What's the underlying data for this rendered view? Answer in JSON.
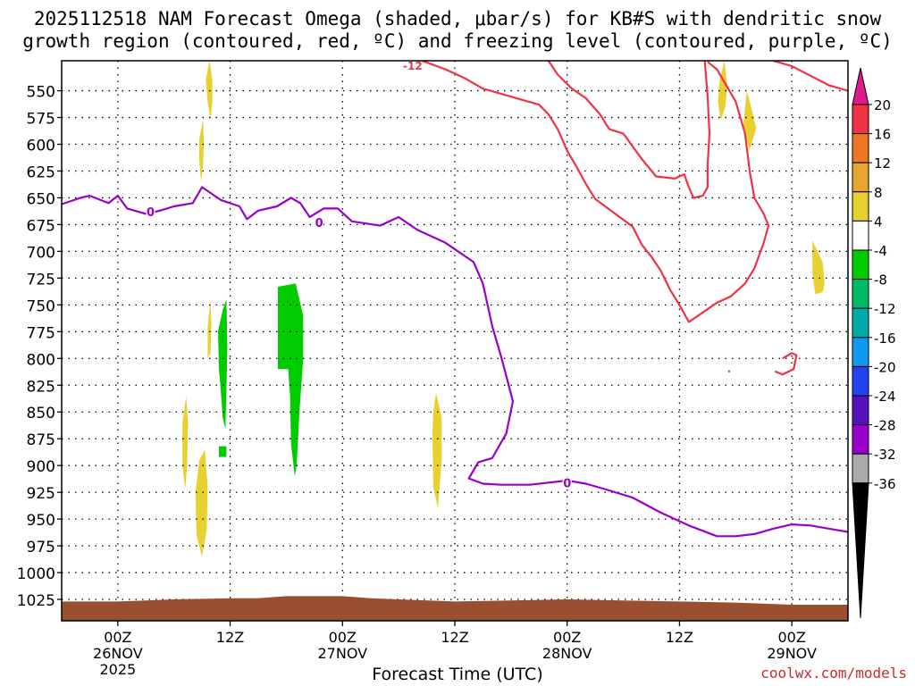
{
  "chart_data": {
    "type": "contour",
    "title": "2025112518 NAM Forecast Omega (shaded, μbar/s) for KB#S with dendritic snow",
    "subtitle": "growth region (contoured, red, ºC) and freezing level (contoured, purple, ºC)",
    "xlabel": "Forecast Time (UTC)",
    "ylabel": "",
    "x_axis": {
      "unit": "hours since 2025-11-25 18Z",
      "range": [
        0,
        84
      ],
      "ticks": [
        {
          "x": 6,
          "label": "00Z",
          "sub": "26NOV",
          "sub2": "2025"
        },
        {
          "x": 18,
          "label": "12Z",
          "sub": "",
          "sub2": ""
        },
        {
          "x": 30,
          "label": "00Z",
          "sub": "27NOV",
          "sub2": ""
        },
        {
          "x": 42,
          "label": "12Z",
          "sub": "",
          "sub2": ""
        },
        {
          "x": 54,
          "label": "00Z",
          "sub": "28NOV",
          "sub2": ""
        },
        {
          "x": 66,
          "label": "12Z",
          "sub": "",
          "sub2": ""
        },
        {
          "x": 78,
          "label": "00Z",
          "sub": "29NOV",
          "sub2": ""
        }
      ]
    },
    "y_axis": {
      "unit": "hPa",
      "range": [
        522,
        1045
      ],
      "inverted": true,
      "ticks": [
        550,
        575,
        600,
        625,
        650,
        675,
        700,
        725,
        750,
        775,
        800,
        825,
        850,
        875,
        900,
        925,
        950,
        975,
        1000,
        1025
      ]
    },
    "grid": "dotted",
    "colorbar": {
      "unit": "μbar/s",
      "placement": "right",
      "labels": [
        "20",
        "16",
        "12",
        "8",
        "4",
        "-4",
        "-8",
        "-12",
        "-16",
        "-20",
        "-24",
        "-28",
        "-32",
        "-36"
      ],
      "colors": [
        "#ee3344",
        "#ee7722",
        "#e8a630",
        "#e8d030",
        "#ffffff",
        "#00cc00",
        "#00bb66",
        "#00aaaa",
        "#1199ee",
        "#2244ee",
        "#5511bb",
        "#9900cc",
        "#aaaaaa"
      ],
      "top_arrow_color": "#e01a8c",
      "bottom_arrow_color": "#000000"
    },
    "freezing_level": {
      "color": "#9900cc",
      "contour_label": "0",
      "label_positions": [
        [
          9.5,
          663
        ],
        [
          27.5,
          673
        ],
        [
          54,
          916
        ]
      ],
      "points": [
        [
          0,
          656
        ],
        [
          2,
          650
        ],
        [
          3,
          648
        ],
        [
          5,
          655
        ],
        [
          6,
          648
        ],
        [
          7,
          660
        ],
        [
          9,
          665
        ],
        [
          10.5,
          662
        ],
        [
          12,
          658
        ],
        [
          14,
          655
        ],
        [
          15,
          640
        ],
        [
          17,
          652
        ],
        [
          19,
          658
        ],
        [
          19.8,
          670
        ],
        [
          21,
          662
        ],
        [
          23,
          658
        ],
        [
          24.5,
          650
        ],
        [
          25.5,
          655
        ],
        [
          26.5,
          668
        ],
        [
          28,
          660
        ],
        [
          29.5,
          660
        ],
        [
          31,
          672
        ],
        [
          32.5,
          674
        ],
        [
          34,
          676
        ],
        [
          36,
          668
        ],
        [
          38,
          680
        ],
        [
          41,
          692
        ],
        [
          44,
          710
        ],
        [
          45,
          730
        ],
        [
          46,
          770
        ],
        [
          47,
          800
        ],
        [
          48.2,
          840
        ],
        [
          47.5,
          870
        ],
        [
          46,
          893
        ],
        [
          44.5,
          897
        ],
        [
          43.5,
          912
        ],
        [
          45,
          917
        ],
        [
          47,
          918
        ],
        [
          50,
          918
        ],
        [
          54,
          914
        ],
        [
          56,
          917
        ],
        [
          58,
          922
        ],
        [
          61,
          930
        ],
        [
          64,
          944
        ],
        [
          67,
          956
        ],
        [
          70,
          966
        ],
        [
          72,
          966
        ],
        [
          74,
          964
        ],
        [
          76,
          959
        ],
        [
          78,
          955
        ],
        [
          80,
          956
        ],
        [
          82,
          959
        ],
        [
          84,
          962
        ]
      ]
    },
    "dgz_minus12": {
      "color": "#ee3344",
      "contour_label": "-12",
      "label_position": [
        37.5,
        522
      ],
      "contours": [
        [
          [
            38.5,
            522
          ],
          [
            41,
            530
          ],
          [
            43,
            538
          ],
          [
            45,
            548
          ],
          [
            47,
            553
          ],
          [
            49,
            558
          ],
          [
            51,
            563
          ],
          [
            52,
            572
          ],
          [
            53,
            586
          ],
          [
            54,
            606
          ],
          [
            55,
            621
          ],
          [
            56,
            637
          ],
          [
            57,
            651
          ],
          [
            59,
            664
          ],
          [
            61,
            677
          ],
          [
            62,
            694
          ],
          [
            63,
            705
          ],
          [
            64,
            718
          ],
          [
            65,
            736
          ],
          [
            66,
            750
          ],
          [
            67,
            766
          ],
          [
            68,
            760
          ],
          [
            70,
            748
          ],
          [
            71.5,
            742
          ],
          [
            73,
            730
          ],
          [
            74,
            716
          ],
          [
            75,
            692
          ],
          [
            75.5,
            676
          ],
          [
            75,
            665
          ],
          [
            74,
            650
          ],
          [
            73.5,
            625
          ],
          [
            73,
            590
          ],
          [
            72,
            560
          ],
          [
            70,
            530
          ],
          [
            69,
            523
          ]
        ],
        [
          [
            52,
            522
          ],
          [
            53,
            535
          ],
          [
            54.5,
            548
          ],
          [
            56,
            557
          ],
          [
            57.5,
            572
          ],
          [
            58.5,
            586
          ],
          [
            60,
            590
          ],
          [
            61,
            602
          ],
          [
            62,
            614
          ],
          [
            63.5,
            630
          ],
          [
            65.5,
            632
          ],
          [
            66.5,
            628
          ],
          [
            67,
            640
          ],
          [
            67.5,
            650
          ],
          [
            68.5,
            648
          ],
          [
            69,
            640
          ],
          [
            69,
            620
          ],
          [
            69.2,
            590
          ],
          [
            69,
            555
          ],
          [
            68.7,
            522
          ]
        ],
        [
          [
            76,
            522
          ],
          [
            78,
            527
          ],
          [
            80,
            536
          ],
          [
            82,
            545
          ],
          [
            84,
            550
          ]
        ],
        [
          [
            77,
            800
          ],
          [
            78,
            795
          ],
          [
            78.5,
            797
          ],
          [
            78.2,
            810
          ],
          [
            77,
            815
          ],
          [
            76.2,
            812
          ]
        ],
        [
          [
            71.2,
            812
          ],
          [
            71.4,
            812
          ]
        ]
      ]
    },
    "shaded_omega": [
      {
        "color": "#e8d030",
        "value_range": "4 to 8",
        "polygon": [
          [
            15.8,
            522
          ],
          [
            16.1,
            540
          ],
          [
            16.1,
            560
          ],
          [
            15.9,
            577
          ],
          [
            15.6,
            560
          ],
          [
            15.4,
            540
          ]
        ]
      },
      {
        "color": "#e8d030",
        "value_range": "4 to 8",
        "polygon": [
          [
            15.1,
            577
          ],
          [
            15.2,
            600
          ],
          [
            15.1,
            620
          ],
          [
            14.9,
            635
          ],
          [
            14.7,
            615
          ],
          [
            14.7,
            595
          ]
        ]
      },
      {
        "color": "#e8d030",
        "value_range": "4 to 8",
        "polygon": [
          [
            13.3,
            835
          ],
          [
            13.5,
            860
          ],
          [
            13.4,
            900
          ],
          [
            13.2,
            922
          ],
          [
            12.9,
            900
          ],
          [
            12.9,
            860
          ]
        ]
      },
      {
        "color": "#e8d030",
        "value_range": "4 to 8",
        "polygon": [
          [
            15.3,
            885
          ],
          [
            15.6,
            920
          ],
          [
            15.5,
            960
          ],
          [
            15.0,
            985
          ],
          [
            14.4,
            965
          ],
          [
            14.3,
            925
          ],
          [
            14.7,
            895
          ]
        ]
      },
      {
        "color": "#e8d030",
        "value_range": "4 to 8",
        "polygon": [
          [
            15.9,
            745
          ],
          [
            16.0,
            770
          ],
          [
            15.9,
            795
          ],
          [
            15.6,
            800
          ],
          [
            15.6,
            770
          ]
        ]
      },
      {
        "color": "#e8d030",
        "value_range": "4 to 8",
        "polygon": [
          [
            40,
            832
          ],
          [
            40.6,
            855
          ],
          [
            40.6,
            895
          ],
          [
            40.2,
            940
          ],
          [
            39.7,
            920
          ],
          [
            39.6,
            870
          ],
          [
            39.7,
            850
          ]
        ]
      },
      {
        "color": "#e8d030",
        "value_range": "4 to 8",
        "polygon": [
          [
            70.8,
            522
          ],
          [
            71.1,
            545
          ],
          [
            70.9,
            565
          ],
          [
            70.4,
            578
          ],
          [
            70.1,
            560
          ],
          [
            70.3,
            540
          ]
        ]
      },
      {
        "color": "#e8d030",
        "value_range": "4 to 8",
        "polygon": [
          [
            73.2,
            550
          ],
          [
            73.8,
            570
          ],
          [
            74.2,
            585
          ],
          [
            73.5,
            605
          ],
          [
            72.8,
            585
          ],
          [
            73.0,
            565
          ]
        ]
      },
      {
        "color": "#e8d030",
        "value_range": "4 to 8",
        "polygon": [
          [
            80.2,
            690
          ],
          [
            81.3,
            710
          ],
          [
            81.5,
            730
          ],
          [
            81.3,
            738
          ],
          [
            80.5,
            740
          ],
          [
            80.2,
            720
          ]
        ]
      },
      {
        "color": "#00cc00",
        "value_range": "-4 to -8",
        "polygon": [
          [
            17.2,
            755
          ],
          [
            17.6,
            745
          ],
          [
            17.7,
            790
          ],
          [
            17.6,
            830
          ],
          [
            17.5,
            866
          ],
          [
            17.2,
            855
          ],
          [
            17.0,
            830
          ],
          [
            16.8,
            810
          ],
          [
            16.7,
            775
          ]
        ]
      },
      {
        "color": "#00cc00",
        "value_range": "-4 to -8",
        "polygon": [
          [
            16.8,
            882
          ],
          [
            17.6,
            882
          ],
          [
            17.6,
            892
          ],
          [
            16.8,
            892
          ]
        ]
      },
      {
        "color": "#00cc00",
        "value_range": "-4 to -8",
        "polygon": [
          [
            23.1,
            733
          ],
          [
            25.0,
            730
          ],
          [
            25.8,
            760
          ],
          [
            25.8,
            800
          ],
          [
            25.4,
            850
          ],
          [
            25.1,
            900
          ],
          [
            24.9,
            910
          ],
          [
            24.5,
            880
          ],
          [
            24.4,
            835
          ],
          [
            24.2,
            810
          ],
          [
            23.1,
            810
          ]
        ]
      }
    ],
    "terrain": {
      "color": "#9a5030",
      "label": "surface pressure",
      "points": [
        [
          0,
          1045
        ],
        [
          0,
          1027
        ],
        [
          6,
          1027
        ],
        [
          9,
          1026
        ],
        [
          12,
          1025
        ],
        [
          18,
          1024
        ],
        [
          21,
          1024
        ],
        [
          24,
          1022
        ],
        [
          30,
          1022
        ],
        [
          33,
          1024
        ],
        [
          36,
          1025
        ],
        [
          42,
          1027
        ],
        [
          48,
          1026
        ],
        [
          54,
          1025
        ],
        [
          60,
          1026
        ],
        [
          66,
          1027
        ],
        [
          72,
          1028
        ],
        [
          78,
          1030
        ],
        [
          84,
          1030
        ],
        [
          84,
          1045
        ]
      ]
    }
  },
  "page": {
    "credit": "coolwx.com/models"
  }
}
